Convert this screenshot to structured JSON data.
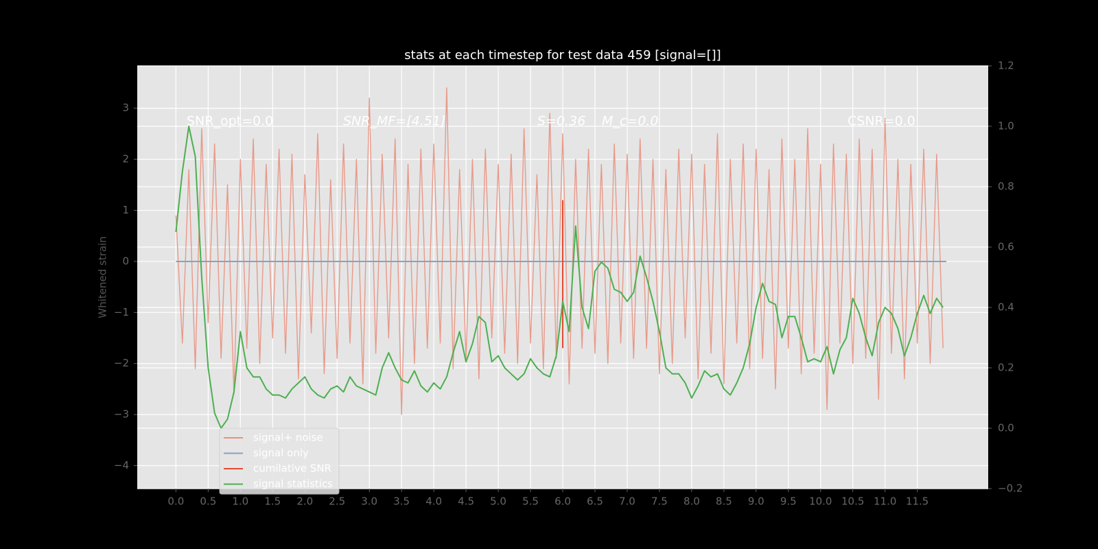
{
  "chart_data": {
    "type": "line",
    "title": "stats at each timestep for test data 459 [signal=[]]",
    "y_label": "Whitened strain",
    "annotations": [
      "SNR_opt=0.0",
      "SNR_MF=[4.51]",
      "S=0.36",
      "M_c=0.0",
      "CSNR=0.0"
    ],
    "xlim": [
      -0.6,
      12.6
    ],
    "ylim": [
      -4.45,
      3.83
    ],
    "y2lim": [
      -0.2,
      1.2
    ],
    "xticks": [
      {
        "value": 0,
        "label": "0.0"
      },
      0.5,
      {
        "value": 1,
        "label": "1.0"
      },
      1.5,
      {
        "value": 2,
        "label": "2.0"
      },
      2.5,
      {
        "value": 3,
        "label": "3.0"
      },
      3.5,
      {
        "value": 4,
        "label": "4.0"
      },
      4.5,
      {
        "value": 5,
        "label": "5.0"
      },
      5.5,
      {
        "value": 6,
        "label": "6.0"
      },
      6.5,
      {
        "value": 7,
        "label": "7.0"
      },
      7.5,
      {
        "value": 8,
        "label": "8.0"
      },
      8.5,
      {
        "value": 9,
        "label": "9.0"
      },
      9.5,
      {
        "value": 10,
        "label": "10.0"
      },
      10.5,
      {
        "value": 11,
        "label": "11.0"
      },
      11.5
    ],
    "yticks": [
      {
        "value": -4,
        "label": "−4"
      },
      {
        "value": -3,
        "label": "−3"
      },
      {
        "value": -2,
        "label": "−2"
      },
      {
        "value": -1,
        "label": "−1"
      },
      0,
      1,
      2,
      3
    ],
    "y2ticks": [
      {
        "value": -0.2,
        "label": "−0.2"
      },
      {
        "value": 0,
        "label": "0.0"
      },
      0.2,
      0.4,
      0.6,
      0.8,
      {
        "value": 1,
        "label": "1.0"
      },
      1.2
    ],
    "grid": true,
    "legend": "lower left",
    "x": [
      0,
      0.1,
      0.2,
      0.3,
      0.4,
      0.5,
      0.6,
      0.7,
      0.8,
      0.9,
      1,
      1.1,
      1.2,
      1.3,
      1.4,
      1.5,
      1.6,
      1.7,
      1.8,
      1.9,
      2,
      2.1,
      2.2,
      2.3,
      2.4,
      2.5,
      2.6,
      2.7,
      2.8,
      2.9,
      3,
      3.1,
      3.2,
      3.3,
      3.4,
      3.5,
      3.6,
      3.7,
      3.8,
      3.9,
      4,
      4.1,
      4.2,
      4.3,
      4.4,
      4.5,
      4.6,
      4.7,
      4.8,
      4.9,
      5,
      5.1,
      5.2,
      5.3,
      5.4,
      5.5,
      5.6,
      5.7,
      5.8,
      5.9,
      6,
      6.1,
      6.2,
      6.3,
      6.4,
      6.5,
      6.6,
      6.7,
      6.8,
      6.9,
      7,
      7.1,
      7.2,
      7.3,
      7.4,
      7.5,
      7.6,
      7.7,
      7.8,
      7.9,
      8,
      8.1,
      8.2,
      8.3,
      8.4,
      8.5,
      8.6,
      8.7,
      8.8,
      8.9,
      9,
      9.1,
      9.2,
      9.3,
      9.4,
      9.5,
      9.6,
      9.7,
      9.8,
      9.9,
      10,
      10.1,
      10.2,
      10.3,
      10.4,
      10.5,
      10.6,
      10.7,
      10.8,
      10.9,
      11,
      11.1,
      11.2,
      11.3,
      11.4,
      11.5,
      11.6,
      11.7,
      11.8,
      11.9
    ],
    "series": [
      {
        "name": "signal+ noise",
        "color": "#e8907e",
        "values": [
          0.9,
          -1.6,
          1.8,
          -2.1,
          2.6,
          -1.2,
          2.3,
          -1.9,
          1.5,
          -2.6,
          2.0,
          -1.7,
          2.4,
          -2.0,
          1.9,
          -1.5,
          2.2,
          -1.8,
          2.1,
          -2.3,
          1.7,
          -1.4,
          2.5,
          -2.2,
          1.6,
          -1.9,
          2.3,
          -1.6,
          2.0,
          -2.4,
          3.2,
          -1.8,
          2.1,
          -1.5,
          2.4,
          -3.0,
          1.9,
          -2.0,
          2.2,
          -1.7,
          2.3,
          -1.6,
          3.4,
          -2.1,
          1.8,
          -1.9,
          2.0,
          -2.3,
          2.2,
          -1.5,
          1.9,
          -1.8,
          2.1,
          -2.0,
          2.6,
          -1.6,
          1.7,
          -2.1,
          2.9,
          -1.9,
          2.5,
          -2.4,
          2.0,
          -1.7,
          2.2,
          -1.8,
          1.9,
          -2.0,
          2.3,
          -1.6,
          2.1,
          -1.9,
          2.4,
          -1.7,
          2.0,
          -2.2,
          1.8,
          -2.0,
          2.2,
          -1.5,
          2.1,
          -2.3,
          1.9,
          -1.8,
          2.5,
          -2.4,
          2.0,
          -1.6,
          2.3,
          -2.1,
          2.2,
          -1.9,
          1.8,
          -2.5,
          2.4,
          -1.7,
          2.0,
          -2.2,
          2.6,
          -1.8,
          1.9,
          -2.9,
          2.3,
          -1.6,
          2.1,
          -2.0,
          2.4,
          -1.9,
          2.2,
          -2.7,
          2.8,
          -1.8,
          2.0,
          -2.3,
          1.9,
          -1.6,
          2.2,
          -2.0,
          2.1,
          -1.7
        ]
      },
      {
        "name": "signal only",
        "color": "#8aa0c0",
        "x": [
          0,
          11.95
        ],
        "values": [
          0,
          0
        ]
      },
      {
        "name": "cumilative SNR",
        "color": "#e24a33",
        "x": [
          6,
          6
        ],
        "values": [
          1.2,
          -1.7
        ]
      },
      {
        "name": "signal statistics",
        "color": "#4caf50",
        "axis": "y2",
        "values": [
          0.65,
          0.85,
          1.0,
          0.9,
          0.5,
          0.2,
          0.05,
          0.0,
          0.03,
          0.12,
          0.32,
          0.2,
          0.17,
          0.17,
          0.13,
          0.11,
          0.11,
          0.1,
          0.13,
          0.15,
          0.17,
          0.13,
          0.11,
          0.1,
          0.13,
          0.14,
          0.12,
          0.17,
          0.14,
          0.13,
          0.12,
          0.11,
          0.2,
          0.25,
          0.2,
          0.16,
          0.15,
          0.19,
          0.14,
          0.12,
          0.15,
          0.13,
          0.17,
          0.25,
          0.32,
          0.22,
          0.28,
          0.37,
          0.35,
          0.22,
          0.24,
          0.2,
          0.18,
          0.16,
          0.18,
          0.23,
          0.2,
          0.18,
          0.17,
          0.24,
          0.42,
          0.32,
          0.67,
          0.4,
          0.33,
          0.52,
          0.55,
          0.53,
          0.46,
          0.45,
          0.42,
          0.45,
          0.57,
          0.5,
          0.42,
          0.32,
          0.2,
          0.18,
          0.18,
          0.15,
          0.1,
          0.14,
          0.19,
          0.17,
          0.18,
          0.13,
          0.11,
          0.15,
          0.2,
          0.28,
          0.4,
          0.48,
          0.42,
          0.41,
          0.3,
          0.37,
          0.37,
          0.3,
          0.22,
          0.23,
          0.22,
          0.27,
          0.18,
          0.26,
          0.3,
          0.43,
          0.38,
          0.3,
          0.24,
          0.35,
          0.4,
          0.38,
          0.33,
          0.24,
          0.3,
          0.38,
          0.44,
          0.38,
          0.43,
          0.4
        ]
      }
    ]
  }
}
